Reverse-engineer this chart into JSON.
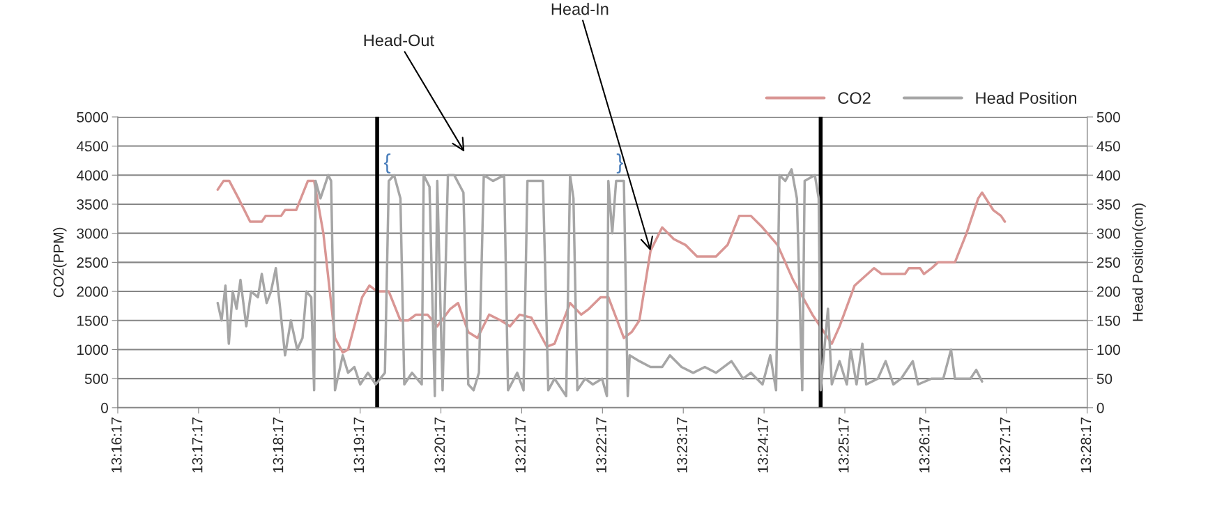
{
  "chart_data": {
    "type": "line",
    "ylabel": "CO2(PPM)",
    "y2label": "Head Position(cm)",
    "xlim": [
      13.271389,
      13.471389
    ],
    "xticks": [
      {
        "value": 13.271389,
        "label": "13:16:17"
      },
      {
        "value": 13.288056,
        "label": "13:17:17"
      },
      {
        "value": 13.304722,
        "label": "13:18:17"
      },
      {
        "value": 13.321389,
        "label": "13:19:17"
      },
      {
        "value": 13.338056,
        "label": "13:20:17"
      },
      {
        "value": 13.354722,
        "label": "13:21:17"
      },
      {
        "value": 13.371389,
        "label": "13:22:17"
      },
      {
        "value": 13.388056,
        "label": "13:23:17"
      },
      {
        "value": 13.404722,
        "label": "13:24:17"
      },
      {
        "value": 13.421389,
        "label": "13:25:17"
      },
      {
        "value": 13.438056,
        "label": "13:26:17"
      },
      {
        "value": 13.454722,
        "label": "13:27:17"
      },
      {
        "value": 13.471389,
        "label": "13:28:17"
      }
    ],
    "ylim": [
      0,
      5000
    ],
    "yticks": [
      0,
      500,
      1000,
      1500,
      2000,
      2500,
      3000,
      3500,
      4000,
      4500,
      5000
    ],
    "y2lim": [
      0,
      500
    ],
    "y2ticks": [
      0,
      50,
      100,
      150,
      200,
      250,
      300,
      350,
      400,
      450,
      500
    ],
    "grid": "y",
    "legend": "top right",
    "marker": "none",
    "line_style": "solid",
    "series": [
      {
        "name": "CO2",
        "color": "#d99694",
        "x": [
          13.292,
          13.2932,
          13.2944,
          13.2963,
          13.2987,
          13.3011,
          13.3019,
          13.3051,
          13.3059,
          13.3082,
          13.3106,
          13.3119,
          13.3138,
          13.3162,
          13.3178,
          13.3189,
          13.3218,
          13.3233,
          13.3249,
          13.3273,
          13.3297,
          13.3313,
          13.3329,
          13.3353,
          13.3373,
          13.34,
          13.3416,
          13.3437,
          13.3456,
          13.348,
          13.3504,
          13.3523,
          13.3543,
          13.3567,
          13.3599,
          13.3615,
          13.3647,
          13.367,
          13.3686,
          13.371,
          13.3726,
          13.3758,
          13.3774,
          13.379,
          13.3813,
          13.3837,
          13.3861,
          13.3885,
          13.3909,
          13.3948,
          13.3972,
          13.3996,
          13.402,
          13.4044,
          13.4075,
          13.4107,
          13.4147,
          13.4187,
          13.4203,
          13.4234,
          13.4274,
          13.429,
          13.4338,
          13.4346,
          13.4369,
          13.4377,
          13.4393,
          13.4406,
          13.4441,
          13.4465,
          13.4489,
          13.4497,
          13.452,
          13.4536,
          13.4544
        ],
        "values": [
          3750,
          3900,
          3900,
          3600,
          3200,
          3200,
          3300,
          3300,
          3400,
          3400,
          3900,
          3900,
          3000,
          1200,
          950,
          1000,
          1900,
          2100,
          2000,
          2000,
          1500,
          1500,
          1600,
          1600,
          1400,
          1700,
          1800,
          1300,
          1200,
          1600,
          1500,
          1400,
          1600,
          1550,
          1050,
          1100,
          1800,
          1600,
          1700,
          1900,
          1900,
          1200,
          1300,
          1500,
          2700,
          3100,
          2900,
          2800,
          2600,
          2600,
          2800,
          3300,
          3300,
          3100,
          2800,
          2200,
          1600,
          1100,
          1400,
          2100,
          2400,
          2300,
          2300,
          2400,
          2400,
          2300,
          2400,
          2500,
          2500,
          3000,
          3600,
          3700,
          3400,
          3300,
          3200
        ]
      },
      {
        "name": "Head Position",
        "color": "#a6a6a6",
        "axis": "y2",
        "x": [
          13.292,
          13.2928,
          13.2936,
          13.2943,
          13.2951,
          13.2959,
          13.2967,
          13.2979,
          13.2989,
          13.3003,
          13.3011,
          13.3021,
          13.303,
          13.304,
          13.3049,
          13.3059,
          13.3071,
          13.3084,
          13.3095,
          13.3103,
          13.3113,
          13.3119,
          13.3122,
          13.3132,
          13.3148,
          13.3154,
          13.3162,
          13.317,
          13.3178,
          13.3189,
          13.3202,
          13.3214,
          13.323,
          13.3246,
          13.3265,
          13.3273,
          13.3284,
          13.3297,
          13.3305,
          13.3321,
          13.3341,
          13.3345,
          13.3357,
          13.3368,
          13.3373,
          13.3384,
          13.3395,
          13.3408,
          13.3427,
          13.3437,
          13.3448,
          13.3459,
          13.3469,
          13.3488,
          13.3511,
          13.3519,
          13.3538,
          13.3551,
          13.3559,
          13.3591,
          13.3602,
          13.3615,
          13.3639,
          13.3647,
          13.3654,
          13.3662,
          13.3678,
          13.3694,
          13.3713,
          13.3723,
          13.3726,
          13.3734,
          13.3742,
          13.3758,
          13.3766,
          13.377,
          13.379,
          13.3813,
          13.3837,
          13.3853,
          13.3877,
          13.3901,
          13.3925,
          13.3948,
          13.398,
          13.4004,
          13.402,
          13.4044,
          13.406,
          13.4072,
          13.4079,
          13.4091,
          13.4104,
          13.4115,
          13.4126,
          13.4131,
          13.4152,
          13.416,
          13.4164,
          13.4179,
          13.4187,
          13.4203,
          13.4218,
          13.4226,
          13.4238,
          13.425,
          13.4258,
          13.4282,
          13.4298,
          13.4314,
          13.433,
          13.4354,
          13.4365,
          13.4393,
          13.4417,
          13.4433,
          13.4441,
          13.4473,
          13.4485,
          13.4497
        ],
        "values": [
          180,
          150,
          210,
          110,
          200,
          170,
          220,
          140,
          200,
          190,
          230,
          180,
          200,
          240,
          170,
          90,
          150,
          100,
          120,
          200,
          190,
          30,
          390,
          360,
          400,
          390,
          30,
          60,
          90,
          60,
          70,
          40,
          60,
          40,
          60,
          390,
          400,
          360,
          40,
          60,
          40,
          400,
          380,
          20,
          390,
          30,
          400,
          400,
          370,
          40,
          30,
          60,
          400,
          390,
          400,
          30,
          60,
          30,
          390,
          390,
          30,
          50,
          20,
          400,
          360,
          30,
          50,
          40,
          50,
          20,
          390,
          300,
          390,
          390,
          20,
          90,
          80,
          70,
          70,
          90,
          70,
          60,
          70,
          60,
          80,
          50,
          60,
          40,
          90,
          30,
          400,
          390,
          410,
          360,
          30,
          390,
          400,
          360,
          30,
          170,
          40,
          80,
          40,
          100,
          40,
          110,
          40,
          50,
          80,
          40,
          50,
          80,
          40,
          50,
          50,
          100,
          50,
          50,
          65,
          45
        ]
      }
    ],
    "ref_lines": [
      {
        "axis": "x",
        "value": 13.3249,
        "color": "#000000"
      },
      {
        "axis": "x",
        "value": 13.4164,
        "color": "#000000"
      }
    ],
    "annotations": [
      "Head-Out",
      {
        "text": "Head-In",
        "x": 13.3813,
        "y": 2700
      },
      "{",
      "}"
    ]
  }
}
